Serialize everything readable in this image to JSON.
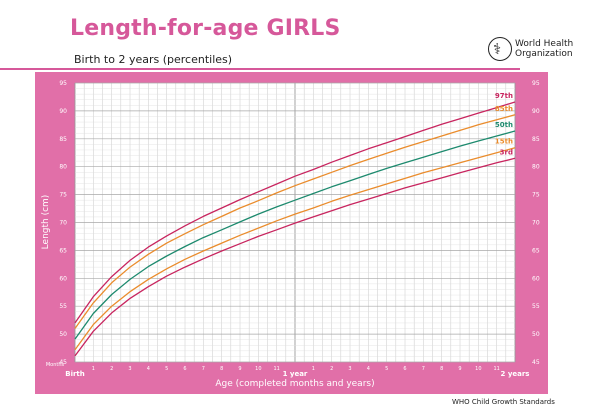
{
  "header": {
    "title": "Length-for-age GIRLS",
    "subtitle": "Birth to 2 years (percentiles)"
  },
  "logo": {
    "line1": "World Health",
    "line2": "Organization",
    "icon": "who-emblem-icon"
  },
  "footer": {
    "text": "WHO Child Growth Standards"
  },
  "colors": {
    "panel": "#e16fa8",
    "plot_bg": "#ffffff",
    "grid": "#c8c8c8",
    "title": "#d6589a",
    "p97": "#c8255f",
    "p85": "#ea8c2c",
    "p50": "#1d8a6e",
    "p15": "#ea8c2c",
    "p3": "#c8255f"
  },
  "chart_data": {
    "type": "line",
    "title": "Length-for-age GIRLS",
    "subtitle": "Birth to 2 years (percentiles)",
    "xlabel": "Age (completed months and years)",
    "ylabel": "Length (cm)",
    "x_units_label": "Months",
    "xlim": [
      0,
      24
    ],
    "ylim": [
      45,
      95
    ],
    "grid": true,
    "x_ticks": [
      {
        "x": 0,
        "label": "Birth",
        "major": true
      },
      {
        "x": 1,
        "label": "1"
      },
      {
        "x": 2,
        "label": "2"
      },
      {
        "x": 3,
        "label": "3"
      },
      {
        "x": 4,
        "label": "4"
      },
      {
        "x": 5,
        "label": "5"
      },
      {
        "x": 6,
        "label": "6"
      },
      {
        "x": 7,
        "label": "7"
      },
      {
        "x": 8,
        "label": "8"
      },
      {
        "x": 9,
        "label": "9"
      },
      {
        "x": 10,
        "label": "10"
      },
      {
        "x": 11,
        "label": "11"
      },
      {
        "x": 12,
        "label": "1 year",
        "major": true
      },
      {
        "x": 13,
        "label": "1"
      },
      {
        "x": 14,
        "label": "2"
      },
      {
        "x": 15,
        "label": "3"
      },
      {
        "x": 16,
        "label": "4"
      },
      {
        "x": 17,
        "label": "5"
      },
      {
        "x": 18,
        "label": "6"
      },
      {
        "x": 19,
        "label": "7"
      },
      {
        "x": 20,
        "label": "8"
      },
      {
        "x": 21,
        "label": "9"
      },
      {
        "x": 22,
        "label": "10"
      },
      {
        "x": 23,
        "label": "11"
      },
      {
        "x": 24,
        "label": "2 years",
        "major": true
      }
    ],
    "y_ticks": [
      45,
      50,
      55,
      60,
      65,
      70,
      75,
      80,
      85,
      90,
      95
    ],
    "x": [
      0,
      1,
      2,
      3,
      4,
      5,
      6,
      7,
      8,
      9,
      10,
      11,
      12,
      13,
      14,
      15,
      16,
      17,
      18,
      19,
      20,
      21,
      22,
      23,
      24
    ],
    "series": [
      {
        "name": "97th",
        "color": "#c8255f",
        "values": [
          52.0,
          56.7,
          60.3,
          63.2,
          65.6,
          67.6,
          69.4,
          71.1,
          72.6,
          74.1,
          75.5,
          76.9,
          78.3,
          79.5,
          80.8,
          82.0,
          83.2,
          84.3,
          85.4,
          86.5,
          87.6,
          88.6,
          89.6,
          90.6,
          91.6
        ]
      },
      {
        "name": "85th",
        "color": "#ea8c2c",
        "values": [
          51.0,
          55.6,
          59.2,
          62.0,
          64.3,
          66.3,
          68.0,
          69.6,
          71.1,
          72.6,
          73.9,
          75.3,
          76.6,
          77.8,
          79.0,
          80.2,
          81.3,
          82.4,
          83.5,
          84.5,
          85.5,
          86.5,
          87.5,
          88.4,
          89.3
        ]
      },
      {
        "name": "50th",
        "color": "#1d8a6e",
        "values": [
          49.1,
          53.7,
          57.1,
          59.8,
          62.1,
          64.0,
          65.7,
          67.3,
          68.7,
          70.1,
          71.5,
          72.8,
          74.0,
          75.2,
          76.4,
          77.5,
          78.6,
          79.7,
          80.7,
          81.7,
          82.7,
          83.7,
          84.6,
          85.5,
          86.4
        ]
      },
      {
        "name": "15th",
        "color": "#ea8c2c",
        "values": [
          47.2,
          51.7,
          55.0,
          57.6,
          59.8,
          61.7,
          63.4,
          64.9,
          66.3,
          67.7,
          69.0,
          70.3,
          71.5,
          72.6,
          73.8,
          74.9,
          75.9,
          76.9,
          77.9,
          78.9,
          79.8,
          80.7,
          81.6,
          82.5,
          83.4
        ]
      },
      {
        "name": "3rd",
        "color": "#c8255f",
        "values": [
          46.1,
          50.5,
          53.8,
          56.4,
          58.5,
          60.4,
          62.0,
          63.5,
          64.9,
          66.2,
          67.5,
          68.7,
          69.9,
          71.0,
          72.1,
          73.2,
          74.2,
          75.2,
          76.2,
          77.1,
          78.0,
          78.9,
          79.8,
          80.7,
          81.5
        ]
      }
    ]
  }
}
